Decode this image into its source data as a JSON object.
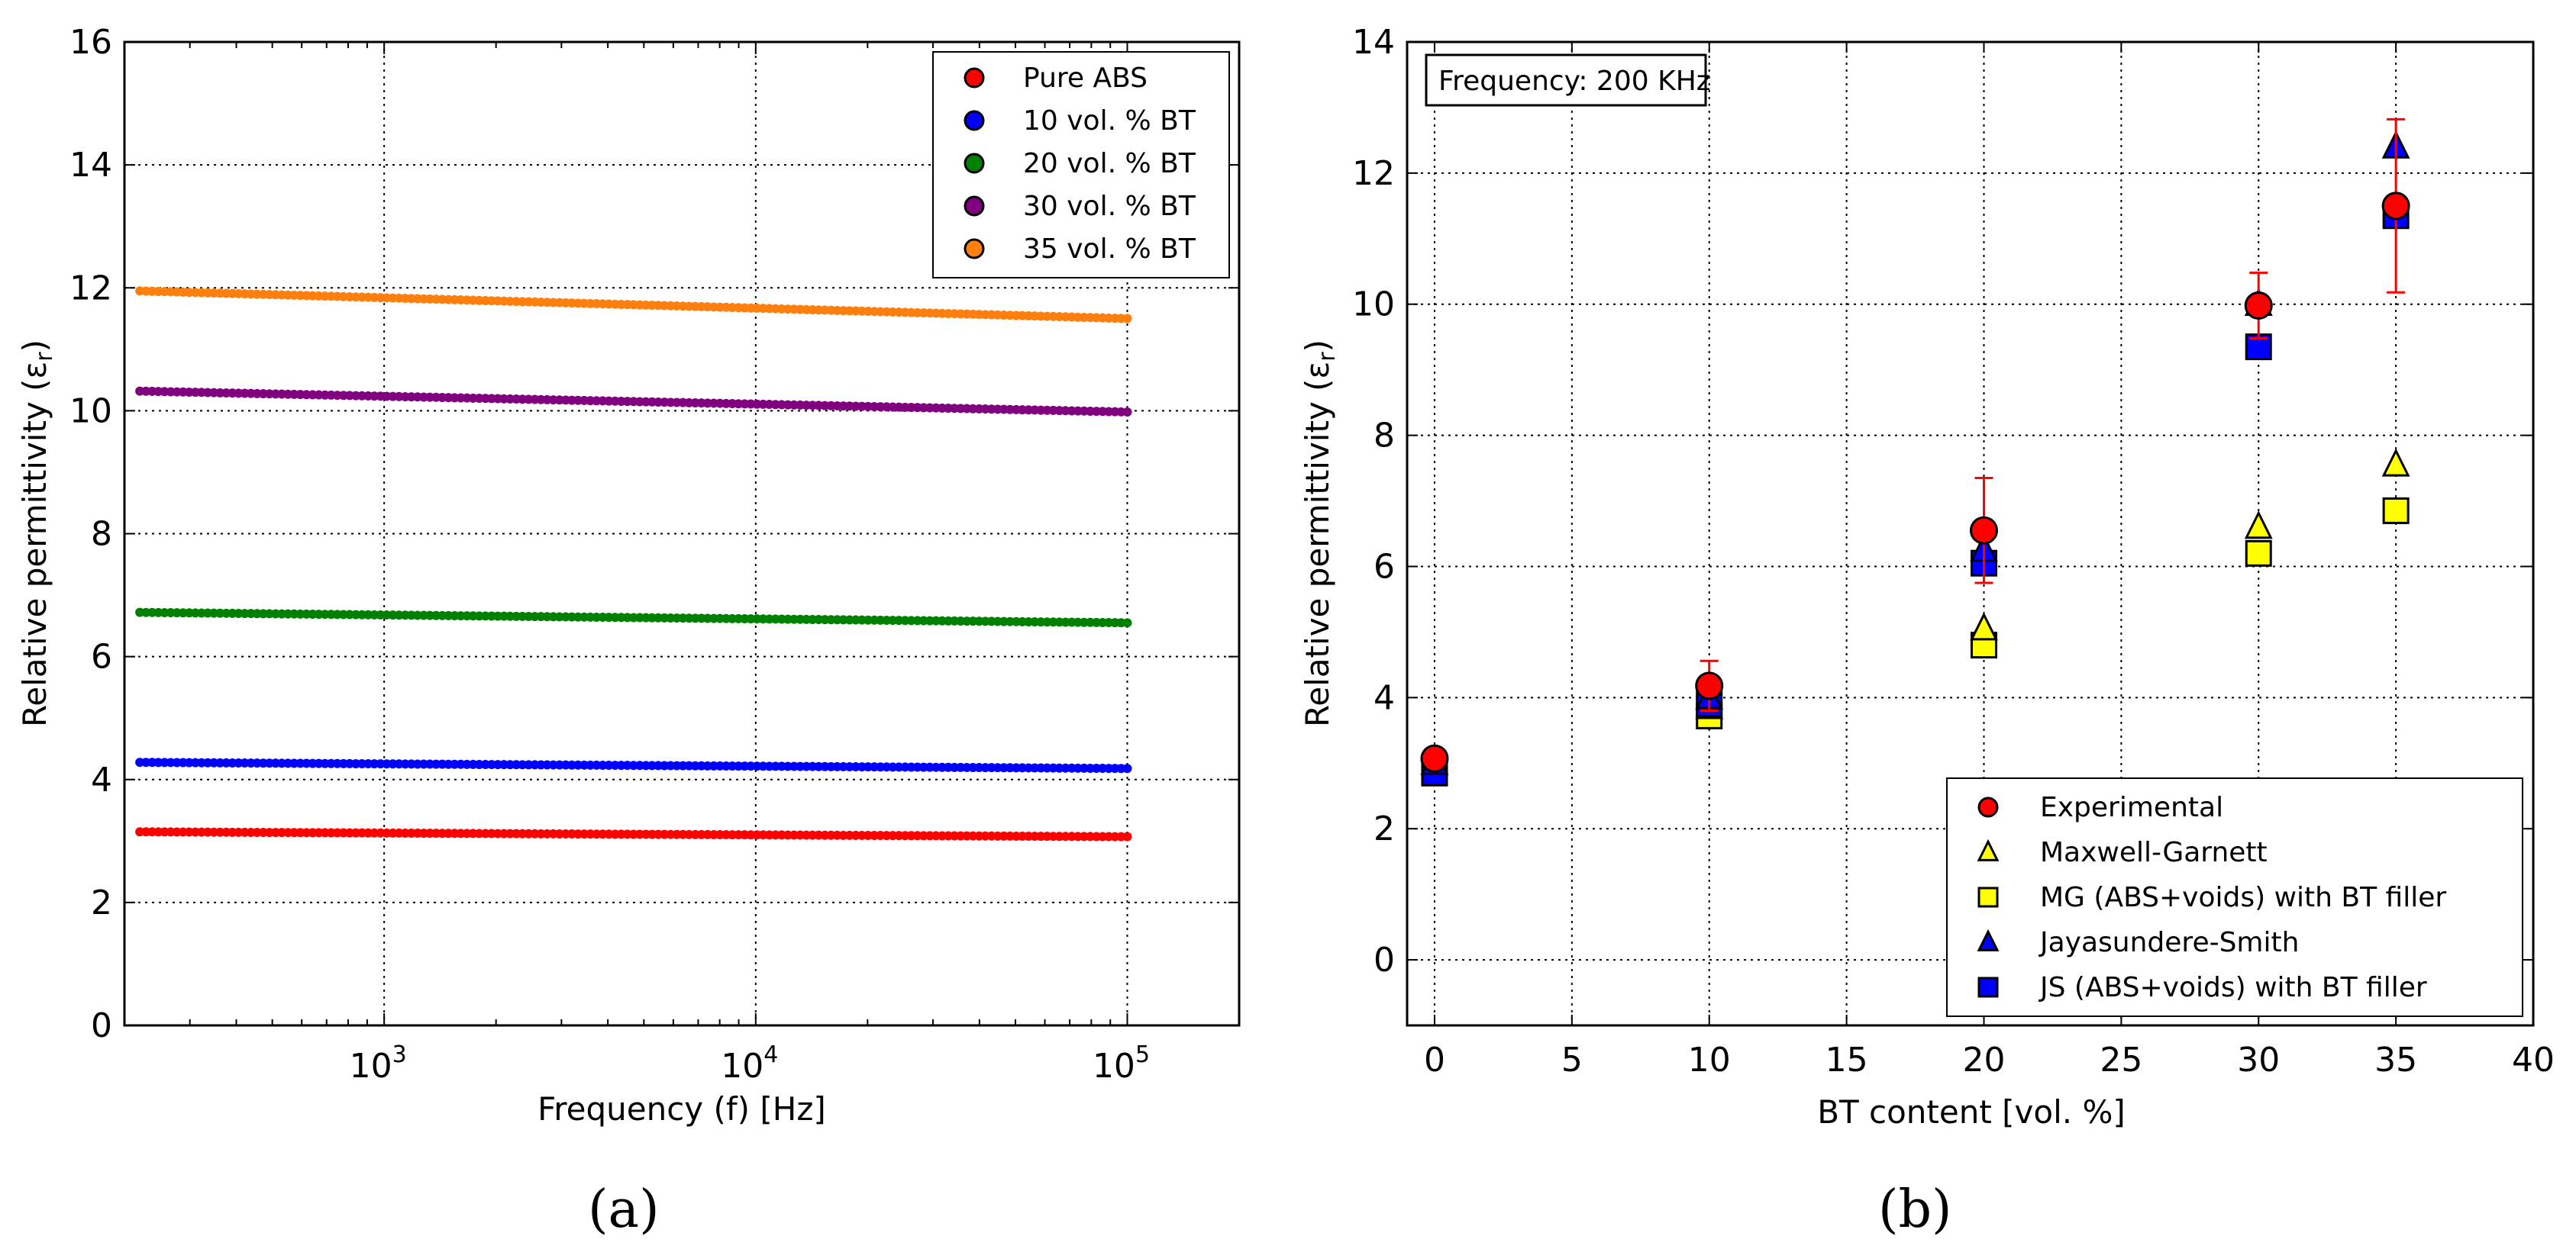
{
  "chart_data": [
    {
      "type": "scatter",
      "panel_label": "(a)",
      "xlabel": "Frequency (f) [Hz]",
      "ylabel": "Relative permittivity (ε",
      "ylabel_sub": "r",
      "ylabel_close": ")",
      "x_scale": "log",
      "xlim": [
        200,
        200000
      ],
      "ylim": [
        0,
        16
      ],
      "x_ticks": [
        1000,
        10000,
        100000
      ],
      "x_tick_labels": [
        {
          "base": "10",
          "exp": "3"
        },
        {
          "base": "10",
          "exp": "4"
        },
        {
          "base": "10",
          "exp": "5"
        }
      ],
      "y_ticks": [
        0,
        2,
        4,
        6,
        8,
        10,
        12,
        14,
        16
      ],
      "y_tick_labels": [
        "0",
        "2",
        "4",
        "6",
        "8",
        "10",
        "12",
        "14",
        "16"
      ],
      "grid": true,
      "legend_position": "top-right",
      "series": [
        {
          "name": "Pure ABS",
          "color": "#ff0000",
          "start": 3.15,
          "end": 3.07
        },
        {
          "name": "10 vol. % BT",
          "color": "#0000ff",
          "start": 4.28,
          "end": 4.18
        },
        {
          "name": "20 vol. % BT",
          "color": "#008000",
          "start": 6.72,
          "end": 6.55
        },
        {
          "name": "30 vol. % BT",
          "color": "#800080",
          "start": 10.32,
          "end": 9.98
        },
        {
          "name": "35 vol. % BT",
          "color": "#ff7f0e",
          "start": 11.95,
          "end": 11.5
        }
      ],
      "x_range": [
        220,
        100000
      ]
    },
    {
      "type": "scatter",
      "panel_label": "(b)",
      "xlabel": "BT content [vol. %]",
      "ylabel": "Relative permittivity (ε",
      "ylabel_sub": "r",
      "ylabel_close": ")",
      "xlim": [
        -1,
        40
      ],
      "ylim": [
        -1,
        14
      ],
      "x_ticks": [
        0,
        5,
        10,
        15,
        20,
        25,
        30,
        35,
        40
      ],
      "x_tick_labels": [
        "0",
        "5",
        "10",
        "15",
        "20",
        "25",
        "30",
        "35",
        "40"
      ],
      "y_ticks": [
        0,
        2,
        4,
        6,
        8,
        10,
        12,
        14
      ],
      "y_tick_labels": [
        "0",
        "2",
        "4",
        "6",
        "8",
        "10",
        "12",
        "14"
      ],
      "grid": true,
      "annotation": "Frequency: 200 KHz",
      "legend_position": "bottom-right",
      "series": [
        {
          "name": "Experimental",
          "marker": "circle",
          "color": "#ff0000",
          "x": [
            0,
            10,
            20,
            30,
            35
          ],
          "y": [
            3.07,
            4.18,
            6.55,
            9.98,
            11.5
          ],
          "yerr": [
            0.1,
            0.38,
            0.8,
            0.5,
            1.32
          ],
          "errcolor": "#ff0000"
        },
        {
          "name": "Maxwell-Garnett",
          "marker": "triangle",
          "color": "#ffff00",
          "x": [
            0,
            10,
            20,
            30,
            35
          ],
          "y": [
            3.0,
            3.85,
            5.05,
            6.6,
            7.55
          ]
        },
        {
          "name": "MG (ABS+voids) with BT filler",
          "marker": "square",
          "color": "#ffff00",
          "x": [
            0,
            10,
            20,
            30,
            35
          ],
          "y": [
            2.85,
            3.72,
            4.8,
            6.2,
            6.85
          ]
        },
        {
          "name": "Jayasundere-Smith",
          "marker": "triangle",
          "color": "#0000ff",
          "x": [
            0,
            10,
            20,
            30,
            35
          ],
          "y": [
            3.0,
            4.0,
            6.25,
            10.0,
            12.4
          ]
        },
        {
          "name": "JS (ABS+voids) with BT filler",
          "marker": "square",
          "color": "#0000ff",
          "x": [
            0,
            10,
            20,
            30,
            35
          ],
          "y": [
            2.85,
            3.9,
            6.05,
            9.35,
            11.35
          ]
        }
      ]
    }
  ]
}
